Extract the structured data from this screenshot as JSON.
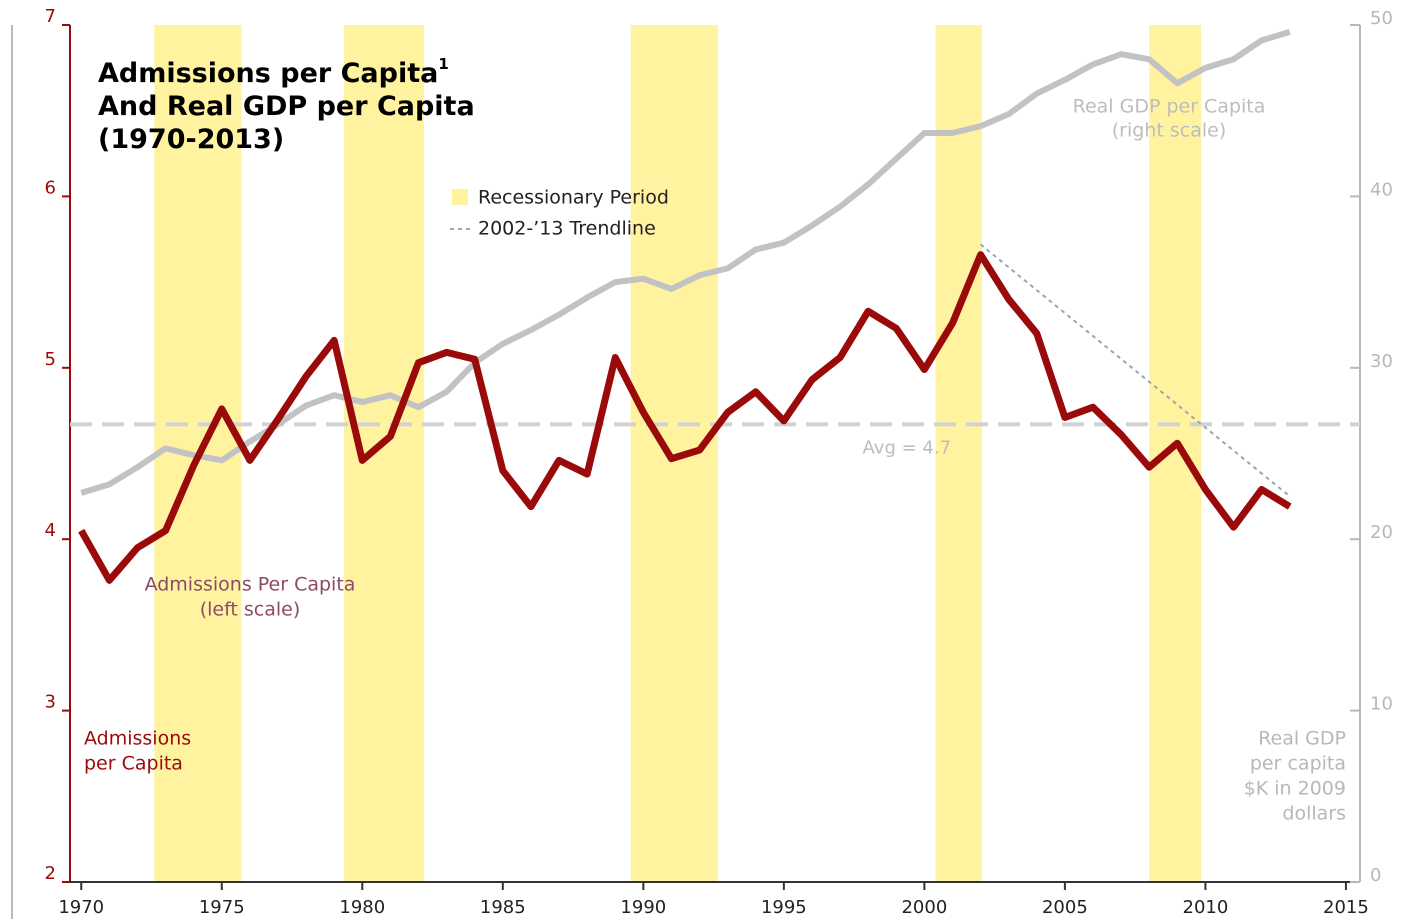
{
  "chart_data": {
    "type": "line",
    "title_lines": [
      "Admissions per Capita",
      "And Real GDP per Capita",
      "(1970-2013)"
    ],
    "title_footnote": "1",
    "x": [
      1970,
      1971,
      1972,
      1973,
      1974,
      1975,
      1976,
      1977,
      1978,
      1979,
      1980,
      1981,
      1982,
      1983,
      1984,
      1985,
      1986,
      1987,
      1988,
      1989,
      1990,
      1991,
      1992,
      1993,
      1994,
      1995,
      1996,
      1997,
      1998,
      1999,
      2000,
      2001,
      2002,
      2003,
      2004,
      2005,
      2006,
      2007,
      2008,
      2009,
      2010,
      2011,
      2012,
      2013
    ],
    "series": [
      {
        "name": "Admissions Per Capita",
        "color": "#9b0a0a",
        "axis": "y",
        "values": [
          4.05,
          3.76,
          3.95,
          4.05,
          4.43,
          4.76,
          4.46,
          4.7,
          4.95,
          5.16,
          4.46,
          4.6,
          5.03,
          5.09,
          5.05,
          4.4,
          4.19,
          4.46,
          4.38,
          5.06,
          4.74,
          4.47,
          4.52,
          4.74,
          4.86,
          4.69,
          4.93,
          5.06,
          5.33,
          5.23,
          4.99,
          5.26,
          5.66,
          5.4,
          5.2,
          4.71,
          4.77,
          4.61,
          4.42,
          4.56,
          4.29,
          4.07,
          4.29,
          4.19
        ]
      },
      {
        "name": "Real GDP per Capita",
        "color": "#c2c2c4",
        "axis": "y2",
        "values": [
          22.7,
          23.2,
          24.2,
          25.3,
          24.9,
          24.6,
          25.7,
          26.7,
          27.8,
          28.4,
          28.0,
          28.4,
          27.7,
          28.6,
          30.3,
          31.4,
          32.2,
          33.1,
          34.1,
          35.0,
          35.2,
          34.6,
          35.4,
          35.8,
          36.9,
          37.3,
          38.3,
          39.4,
          40.7,
          42.2,
          43.7,
          43.7,
          44.1,
          44.8,
          46.0,
          46.8,
          47.7,
          48.3,
          48.0,
          46.6,
          47.5,
          48.0,
          49.1,
          49.6
        ]
      }
    ],
    "series_notes": [
      "(left scale)",
      "(right scale)"
    ],
    "recessions": {
      "label": "Recessionary Period",
      "color": "#fff3a0",
      "periods": [
        [
          1972.6,
          1975.7
        ],
        [
          1979.35,
          1982.2
        ],
        [
          1989.55,
          1992.65
        ],
        [
          2000.4,
          2002.05
        ],
        [
          2008.0,
          2009.85
        ]
      ]
    },
    "trendline": {
      "label": "2002-’13 Trendline",
      "color": "#9aa8a8",
      "x": [
        2002,
        2013
      ],
      "values": [
        5.72,
        4.25
      ]
    },
    "average": {
      "label": "Avg = 4.7",
      "value": 4.67,
      "color": "#d2d2d2"
    },
    "xlim": [
      1969.6,
      2015.5
    ],
    "xticks": [
      1970,
      1975,
      1980,
      1985,
      1990,
      1995,
      2000,
      2005,
      2010,
      2015
    ],
    "ylim": [
      2,
      7
    ],
    "yticks": [
      2,
      3,
      4,
      5,
      6,
      7
    ],
    "y2lim": [
      0,
      50
    ],
    "y2ticks": [
      0,
      10,
      20,
      30,
      40,
      50
    ],
    "ylabel_lines": [
      "Admissions",
      "per Capita"
    ],
    "y2label_lines": [
      "Real GDP",
      "per capita",
      "$K in 2009",
      "dollars"
    ],
    "ycolor": "#9b0a0a",
    "y2color": "#b8b8ba"
  }
}
